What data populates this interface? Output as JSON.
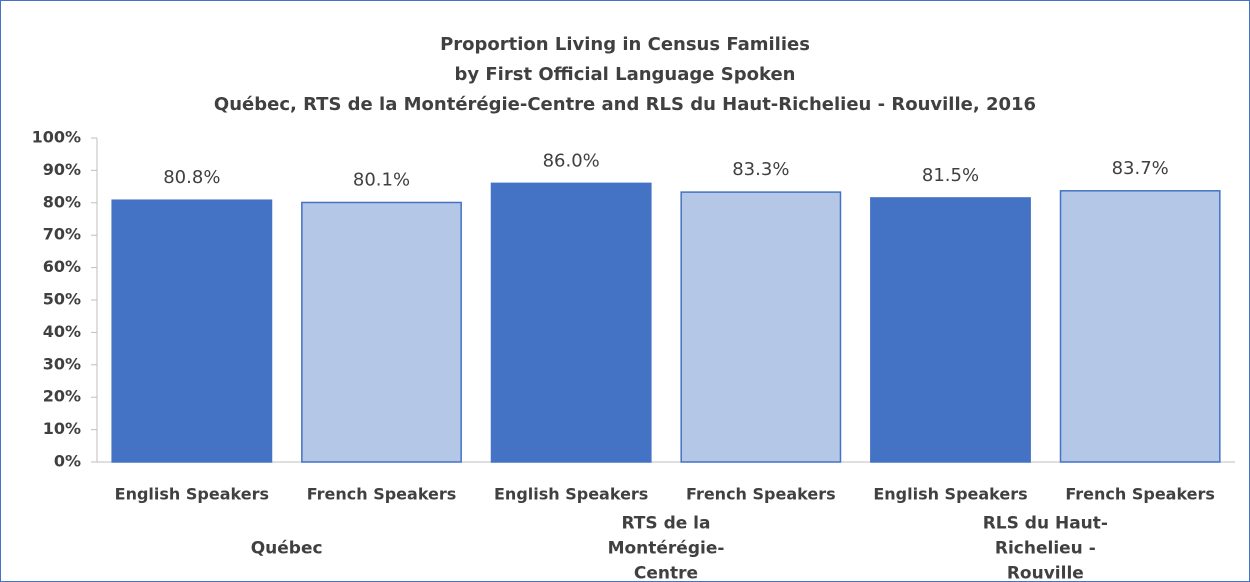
{
  "chart_data": {
    "type": "bar",
    "title": [
      "Proportion Living in Census Families",
      "by First Official Language Spoken",
      "Québec, RTS de la Montérégie-Centre and RLS du Haut-Richelieu - Rouville, 2016"
    ],
    "categories": [
      "English Speakers",
      "French Speakers",
      "English Speakers",
      "French Speakers",
      "English Speakers",
      "French Speakers"
    ],
    "groups": [
      "Québec",
      "RTS de la Montérégie-Centre",
      "RLS du Haut-Richelieu - Rouville"
    ],
    "values": [
      80.8,
      80.1,
      86.0,
      83.3,
      81.5,
      83.7
    ],
    "value_labels": [
      "80.8%",
      "80.1%",
      "86.0%",
      "83.3%",
      "81.5%",
      "83.7%"
    ],
    "colors": [
      "#4472c4",
      "#b4c7e7",
      "#4472c4",
      "#b4c7e7",
      "#4472c4",
      "#b4c7e7"
    ],
    "edge_color": "#4472c4",
    "ylim": [
      0,
      100
    ],
    "yticks": [
      {
        "value": 0,
        "label": "0%"
      },
      {
        "value": 10,
        "label": "10%"
      },
      {
        "value": 20,
        "label": "20%"
      },
      {
        "value": 30,
        "label": "30%"
      },
      {
        "value": 40,
        "label": "40%"
      },
      {
        "value": 50,
        "label": "50%"
      },
      {
        "value": 60,
        "label": "60%"
      },
      {
        "value": 70,
        "label": "70%"
      },
      {
        "value": 80,
        "label": "80%"
      },
      {
        "value": 90,
        "label": "90%"
      },
      {
        "value": 100,
        "label": "100%"
      }
    ],
    "grid": false
  }
}
